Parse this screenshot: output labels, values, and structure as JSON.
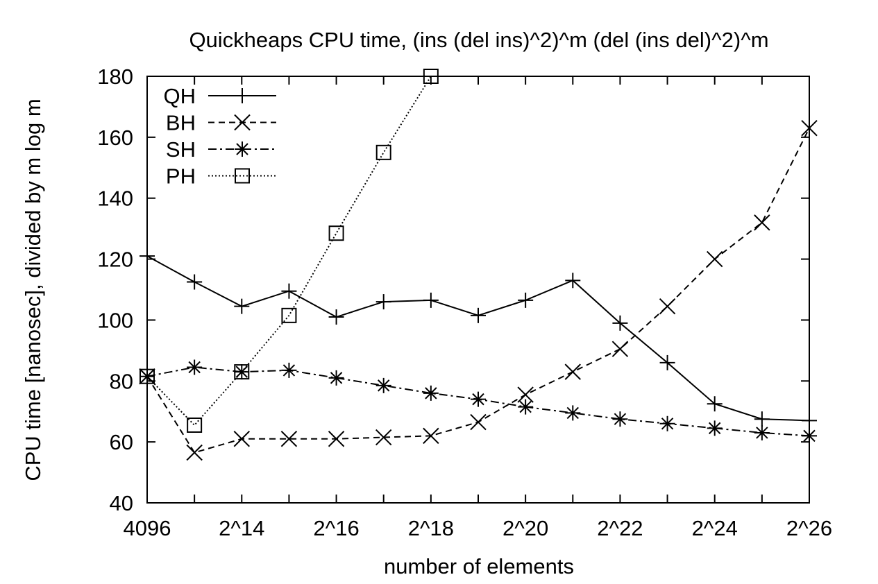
{
  "chart_data": {
    "type": "line",
    "title": "Quickheaps CPU time, (ins (del ins)^2)^m (del (ins del)^2)^m",
    "xlabel": "number of elements",
    "ylabel": "CPU time [nanosec], divided by m log m",
    "x": [
      12,
      13,
      14,
      15,
      16,
      17,
      18,
      19,
      20,
      21,
      22,
      23,
      24,
      25,
      26
    ],
    "xlim": [
      12,
      26
    ],
    "ylim": [
      40,
      180
    ],
    "x_ticks": [
      {
        "value": 12,
        "label": "4096"
      },
      {
        "value": 14,
        "label": "2^14"
      },
      {
        "value": 16,
        "label": "2^16"
      },
      {
        "value": 18,
        "label": "2^18"
      },
      {
        "value": 20,
        "label": "2^20"
      },
      {
        "value": 22,
        "label": "2^22"
      },
      {
        "value": 24,
        "label": "2^24"
      },
      {
        "value": 26,
        "label": "2^26"
      }
    ],
    "y_ticks": [
      40,
      60,
      80,
      100,
      120,
      140,
      160,
      180
    ],
    "grid": false,
    "legend_position": "top-left",
    "series": [
      {
        "name": "QH",
        "marker": "plus",
        "dash": "solid",
        "values": [
          121,
          112.5,
          104.5,
          109.5,
          101,
          106,
          106.5,
          101.5,
          106.5,
          113,
          99,
          86,
          72.5,
          67.5,
          67
        ]
      },
      {
        "name": "BH",
        "marker": "cross",
        "dash": "dashed",
        "values": [
          81.5,
          56.5,
          61,
          61,
          61,
          61.5,
          62,
          66.5,
          75.5,
          83,
          90.5,
          104.5,
          120,
          132,
          163
        ]
      },
      {
        "name": "SH",
        "marker": "star",
        "dash": "dashdot",
        "values": [
          81.5,
          84.5,
          83,
          83.5,
          81,
          78.5,
          76,
          74,
          71.5,
          69.5,
          67.5,
          66,
          64.5,
          63,
          62
        ]
      },
      {
        "name": "PH",
        "marker": "square",
        "dash": "dotted",
        "values": [
          81.5,
          65.5,
          83,
          101.5,
          128.5,
          155,
          180,
          null,
          null,
          null,
          null,
          null,
          null,
          null,
          null
        ]
      }
    ]
  }
}
